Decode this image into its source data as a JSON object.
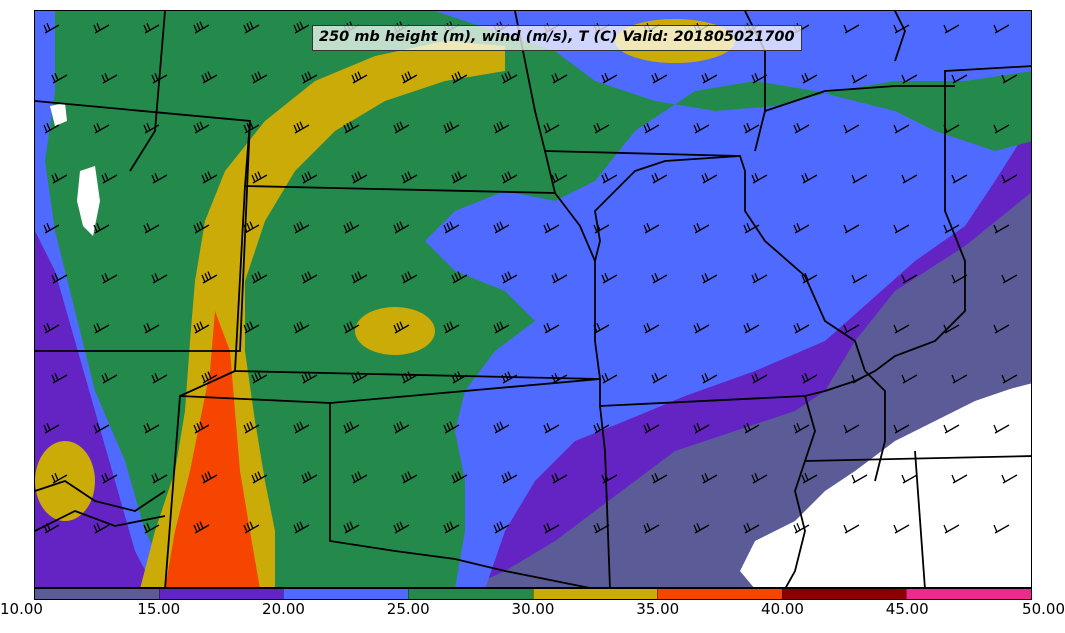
{
  "title": "250 mb height (m), wind (m/s), T (C) Valid: 201805021700",
  "colors": {
    "background_low": "#5b5b97",
    "purple": "#6424c4",
    "blue": "#4f6bff",
    "green": "#238a4c",
    "gold": "#cbab07",
    "orange": "#f54500",
    "darkred": "#8a0000",
    "pink": "#ef2a8f",
    "white_region": "#ffffff",
    "boundaries": "#000000"
  },
  "colorbar": {
    "ticks": [
      "10.00",
      "15.00",
      "20.00",
      "25.00",
      "30.00",
      "35.00",
      "40.00",
      "45.00",
      "50.00"
    ],
    "segments": [
      {
        "range": "10-15",
        "color": "#5b5b97"
      },
      {
        "range": "15-20",
        "color": "#6424c4"
      },
      {
        "range": "20-25",
        "color": "#4f6bff"
      },
      {
        "range": "25-30",
        "color": "#238a4c"
      },
      {
        "range": "30-35",
        "color": "#cbab07"
      },
      {
        "range": "35-40",
        "color": "#f54500"
      },
      {
        "range": "40-45",
        "color": "#8a0000"
      },
      {
        "range": "45-50",
        "color": "#ef2a8f"
      }
    ]
  }
}
